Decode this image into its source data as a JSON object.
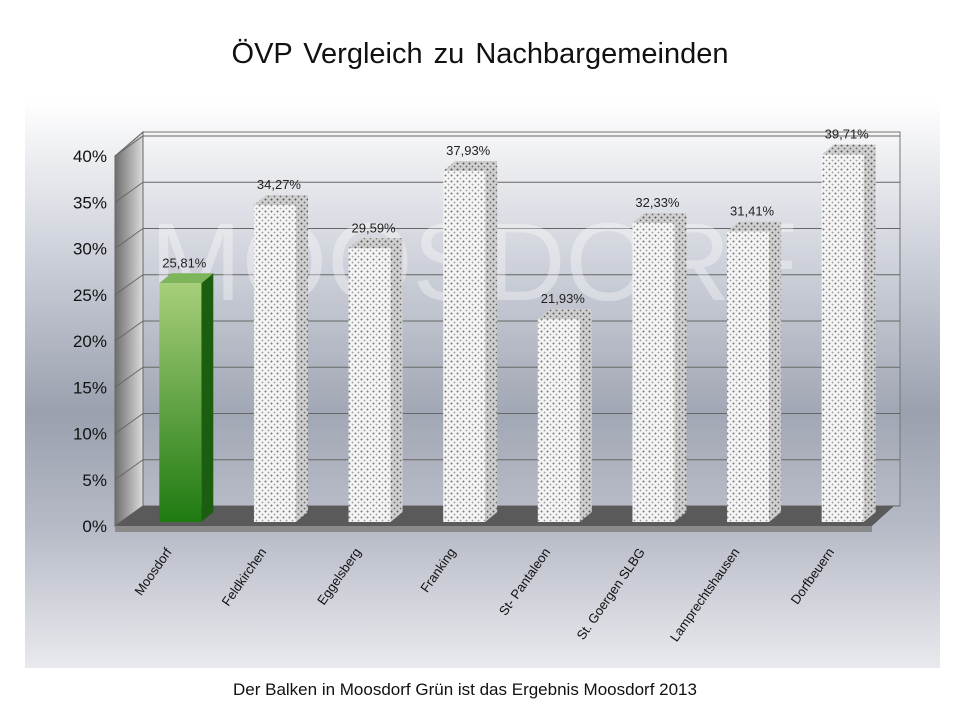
{
  "chart_data": {
    "type": "bar",
    "title": "ÖVP Vergleich  zu Nachbargemeinden",
    "categories": [
      "Moosdorf",
      "Feldkirchen",
      "Eggelsberg",
      "Franking",
      "St- Pantaleon",
      "St. Goergen SLBG",
      "Lamprechtshausen",
      "Dorfbeuern"
    ],
    "values": [
      25.81,
      34.27,
      29.59,
      37.93,
      21.93,
      32.33,
      31.41,
      39.71
    ],
    "data_labels": [
      "25,81%",
      "34,27%",
      "29,59%",
      "37,93%",
      "21,93%",
      "32,33%",
      "31,41%",
      "39,71%"
    ],
    "highlight_index": 0,
    "y_ticks": [
      "0%",
      "5%",
      "10%",
      "15%",
      "20%",
      "25%",
      "30%",
      "35%",
      "40%"
    ],
    "ylim": [
      0,
      40
    ],
    "xlabel": "",
    "ylabel": "",
    "grid": true,
    "colors": {
      "highlight": "#2e8b1e",
      "bars": "#f2f2f2"
    }
  },
  "watermark": "MOOSDORF",
  "footer": "Der Balken in Moosdorf Grün ist das Ergebnis Moosdorf 2013"
}
